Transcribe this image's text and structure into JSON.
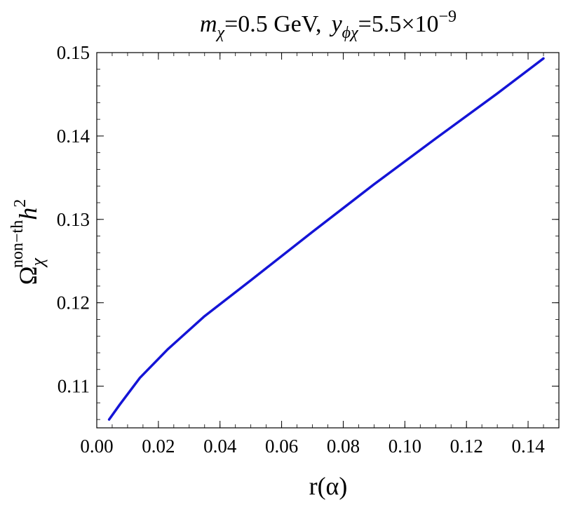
{
  "chart_data": {
    "type": "line",
    "title": {
      "m_sym": "m",
      "m_sub": "χ",
      "m_value": "=0.5 GeV,",
      "y_sym": "y",
      "y_sub": "ϕχ",
      "y_value": "=5.5×10",
      "y_exp": "−9"
    },
    "xlabel": "r(α)",
    "ylabel": {
      "main": "Ω",
      "sub": "χ",
      "sup": "non−th",
      "h": "h",
      "h_sup": "2"
    },
    "xlim": [
      0.0,
      0.15
    ],
    "ylim": [
      0.105,
      0.15
    ],
    "xticks": [
      0.0,
      0.02,
      0.04,
      0.06,
      0.08,
      0.1,
      0.12,
      0.14
    ],
    "xtick_labels": [
      "0.00",
      "0.02",
      "0.04",
      "0.06",
      "0.08",
      "0.10",
      "0.12",
      "0.14"
    ],
    "yticks": [
      0.11,
      0.12,
      0.13,
      0.14,
      0.15
    ],
    "ytick_labels": [
      "0.11",
      "0.12",
      "0.13",
      "0.14",
      "0.15"
    ],
    "grid": false,
    "legend": "none",
    "series": [
      {
        "color": "#1414d6",
        "x": [
          0.004,
          0.0075,
          0.014,
          0.023,
          0.035,
          0.05,
          0.07,
          0.09,
          0.11,
          0.13,
          0.145
        ],
        "y": [
          0.106,
          0.1078,
          0.111,
          0.1144,
          0.1184,
          0.1227,
          0.1285,
          0.1342,
          0.1397,
          0.1451,
          0.1493
        ]
      }
    ]
  }
}
